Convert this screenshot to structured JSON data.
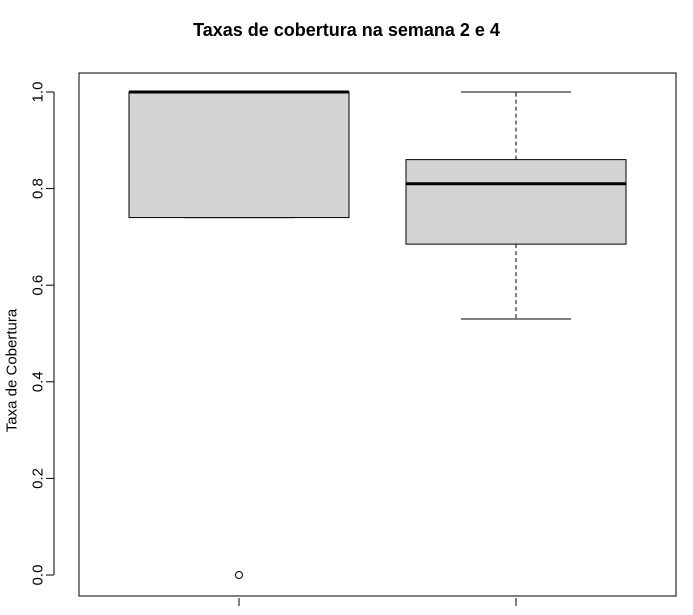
{
  "chart_data": {
    "type": "box",
    "title": "Taxas de cobertura na semana 2 e 4",
    "xlabel": "",
    "ylabel": "Taxa de Cobertura",
    "ylim": [
      0,
      1
    ],
    "yticks": [
      "0.0",
      "0.2",
      "0.4",
      "0.6",
      "0.8",
      "1.0"
    ],
    "categories": [
      "",
      ""
    ],
    "grid": false,
    "box_fill": "#d3d3d3",
    "boxes": [
      {
        "whisker_low": 0.74,
        "q1": 0.74,
        "median": 1.0,
        "q3": 1.0,
        "whisker_high": 1.0,
        "outliers": [
          0.0
        ]
      },
      {
        "whisker_low": 0.53,
        "q1": 0.685,
        "median": 0.81,
        "q3": 0.86,
        "whisker_high": 1.0,
        "outliers": []
      }
    ]
  }
}
